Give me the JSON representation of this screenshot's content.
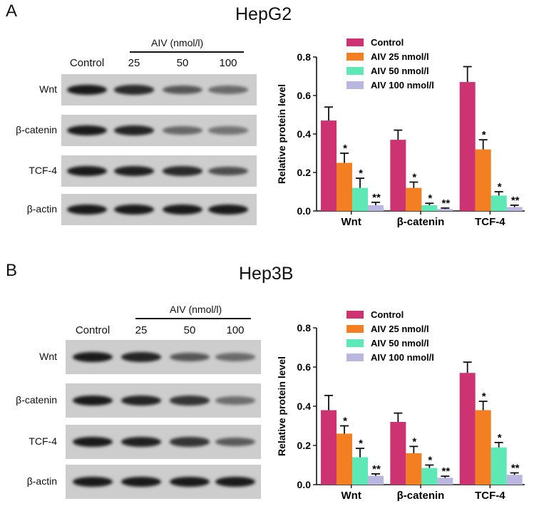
{
  "panel_a": {
    "letter": "A",
    "title": "HepG2",
    "blot": {
      "treatment_header": "AIV (nmol/l)",
      "lanes": [
        "Control",
        "25",
        "50",
        "100"
      ],
      "rows": [
        "Wnt",
        "β-catenin",
        "TCF-4",
        "β-actin"
      ],
      "band_intensity": [
        [
          1.0,
          0.88,
          0.55,
          0.4
        ],
        [
          1.0,
          0.92,
          0.42,
          0.32
        ],
        [
          1.0,
          0.95,
          0.88,
          0.62
        ],
        [
          1.0,
          1.0,
          1.0,
          1.0
        ]
      ]
    }
  },
  "panel_b": {
    "letter": "B",
    "title": "Hep3B",
    "blot": {
      "treatment_header": "AIV (nmol/l)",
      "lanes": [
        "Control",
        "25",
        "50",
        "100"
      ],
      "rows": [
        "Wnt",
        "β-catenin",
        "TCF-4",
        "β-actin"
      ],
      "band_intensity": [
        [
          1.0,
          0.92,
          0.55,
          0.4
        ],
        [
          1.0,
          0.92,
          0.8,
          0.38
        ],
        [
          1.0,
          0.95,
          0.8,
          0.52
        ],
        [
          1.0,
          1.0,
          1.0,
          1.0
        ]
      ]
    }
  },
  "colors": {
    "control": "#cc3370",
    "aiv25": "#f37f22",
    "aiv50": "#5de8b5",
    "aiv100": "#b9b7e0",
    "blot_bg": "#cdcdcd",
    "band": "#1a1a1a"
  },
  "chart_data": [
    {
      "type": "bar",
      "title": "",
      "xlabel": "",
      "ylabel": "Relative protein level",
      "ylim": [
        0,
        0.8
      ],
      "yticks": [
        "0.0",
        "0.2",
        "0.4",
        "0.6",
        "0.8"
      ],
      "categories": [
        "Wnt",
        "β-catenin",
        "TCF-4"
      ],
      "legend_position": "top-left",
      "series": [
        {
          "name": "Control",
          "values": [
            0.47,
            0.37,
            0.67
          ],
          "errors": [
            0.07,
            0.05,
            0.08
          ],
          "sig": [
            "",
            "",
            ""
          ]
        },
        {
          "name": "AIV 25 nmol/l",
          "values": [
            0.25,
            0.12,
            0.32
          ],
          "errors": [
            0.05,
            0.03,
            0.05
          ],
          "sig": [
            "*",
            "*",
            "*"
          ]
        },
        {
          "name": "AIV 50 nmol/l",
          "values": [
            0.12,
            0.03,
            0.08
          ],
          "errors": [
            0.05,
            0.01,
            0.02
          ],
          "sig": [
            "*",
            "*",
            "*"
          ]
        },
        {
          "name": "AIV 100 nmol/l",
          "values": [
            0.03,
            0.01,
            0.02
          ],
          "errors": [
            0.015,
            0.005,
            0.01
          ],
          "sig": [
            "**",
            "**",
            "**"
          ]
        }
      ]
    },
    {
      "type": "bar",
      "title": "",
      "xlabel": "",
      "ylabel": "Relative protein level",
      "ylim": [
        0,
        0.8
      ],
      "yticks": [
        "0.0",
        "0.2",
        "0.4",
        "0.6",
        "0.8"
      ],
      "categories": [
        "Wnt",
        "β-catenin",
        "TCF-4"
      ],
      "legend_position": "top-left",
      "series": [
        {
          "name": "Control",
          "values": [
            0.38,
            0.32,
            0.57
          ],
          "errors": [
            0.075,
            0.045,
            0.055
          ],
          "sig": [
            "",
            "",
            ""
          ]
        },
        {
          "name": "AIV 25 nmol/l",
          "values": [
            0.26,
            0.16,
            0.38
          ],
          "errors": [
            0.04,
            0.035,
            0.045
          ],
          "sig": [
            "*",
            "*",
            "*"
          ]
        },
        {
          "name": "AIV 50 nmol/l",
          "values": [
            0.14,
            0.085,
            0.19
          ],
          "errors": [
            0.045,
            0.015,
            0.025
          ],
          "sig": [
            "*",
            "*",
            "*"
          ]
        },
        {
          "name": "AIV 100 nmol/l",
          "values": [
            0.045,
            0.035,
            0.05
          ],
          "errors": [
            0.01,
            0.008,
            0.01
          ],
          "sig": [
            "**",
            "**",
            "**"
          ]
        }
      ]
    }
  ]
}
